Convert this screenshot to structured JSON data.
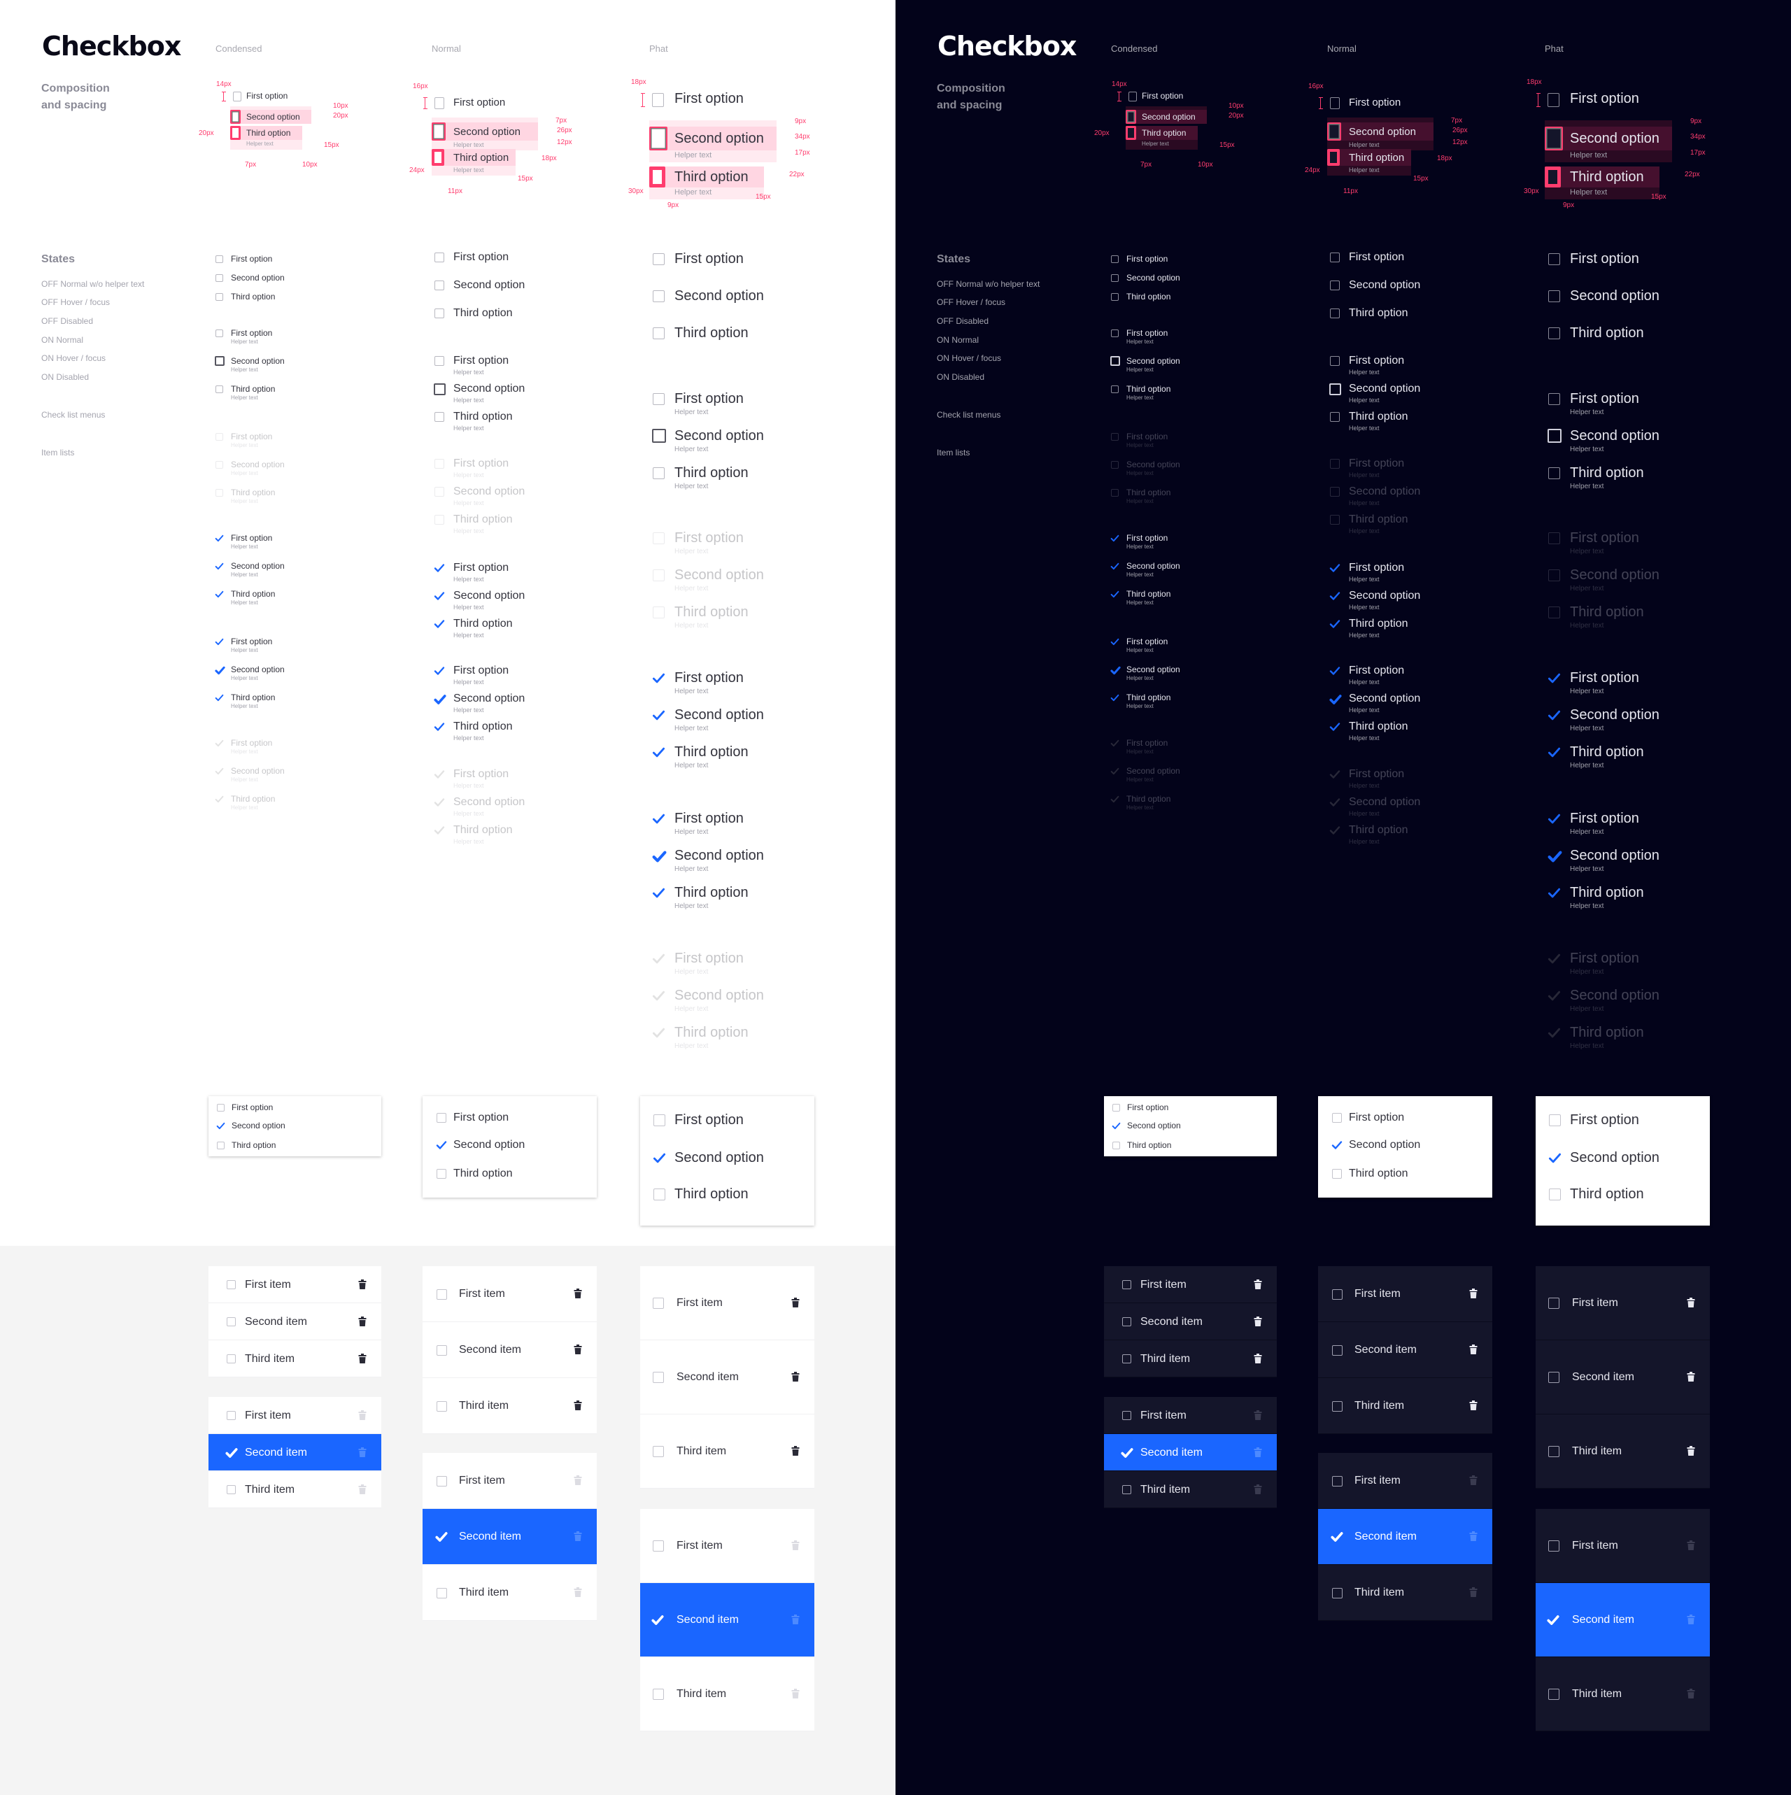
{
  "title": "Checkbox",
  "columns": [
    "Condensed",
    "Normal",
    "Phat"
  ],
  "sections": {
    "composition": "Composition\nand spacing",
    "states": "States",
    "state_labels": [
      "OFF Normal w/o helper text",
      "OFF Hover / focus",
      "OFF Disabled",
      "ON Normal",
      "ON Hover / focus",
      "ON Disabled"
    ],
    "check_list_menus": "Check list menus",
    "item_lists": "Item lists"
  },
  "options": [
    "First option",
    "Second option",
    "Third option"
  ],
  "helper": "Helper text",
  "items": [
    "First item",
    "Second item",
    "Third item"
  ],
  "annotations": {
    "condensed": [
      "14px",
      "10px",
      "20px",
      "20px",
      "15px",
      "7px",
      "10px"
    ],
    "normal": [
      "16px",
      "7px",
      "26px",
      "12px",
      "18px",
      "24px",
      "15px",
      "11px"
    ],
    "phat": [
      "18px",
      "9px",
      "34px",
      "17px",
      "22px",
      "30px",
      "15px",
      "9px"
    ]
  },
  "check_menu": {
    "checked_index": 1
  },
  "item_list": {
    "selected_index": 1
  },
  "icons": {
    "check": "check-icon",
    "trash": "trash-icon",
    "checkbox": "checkbox-icon"
  },
  "colors": {
    "accent": "#1a66ff",
    "annotation": "#ff3d6e",
    "light_bg": "#ffffff",
    "light_lower_bg": "#f4f4f4",
    "dark_bg": "#03031a",
    "dark_row": "#14152a"
  }
}
